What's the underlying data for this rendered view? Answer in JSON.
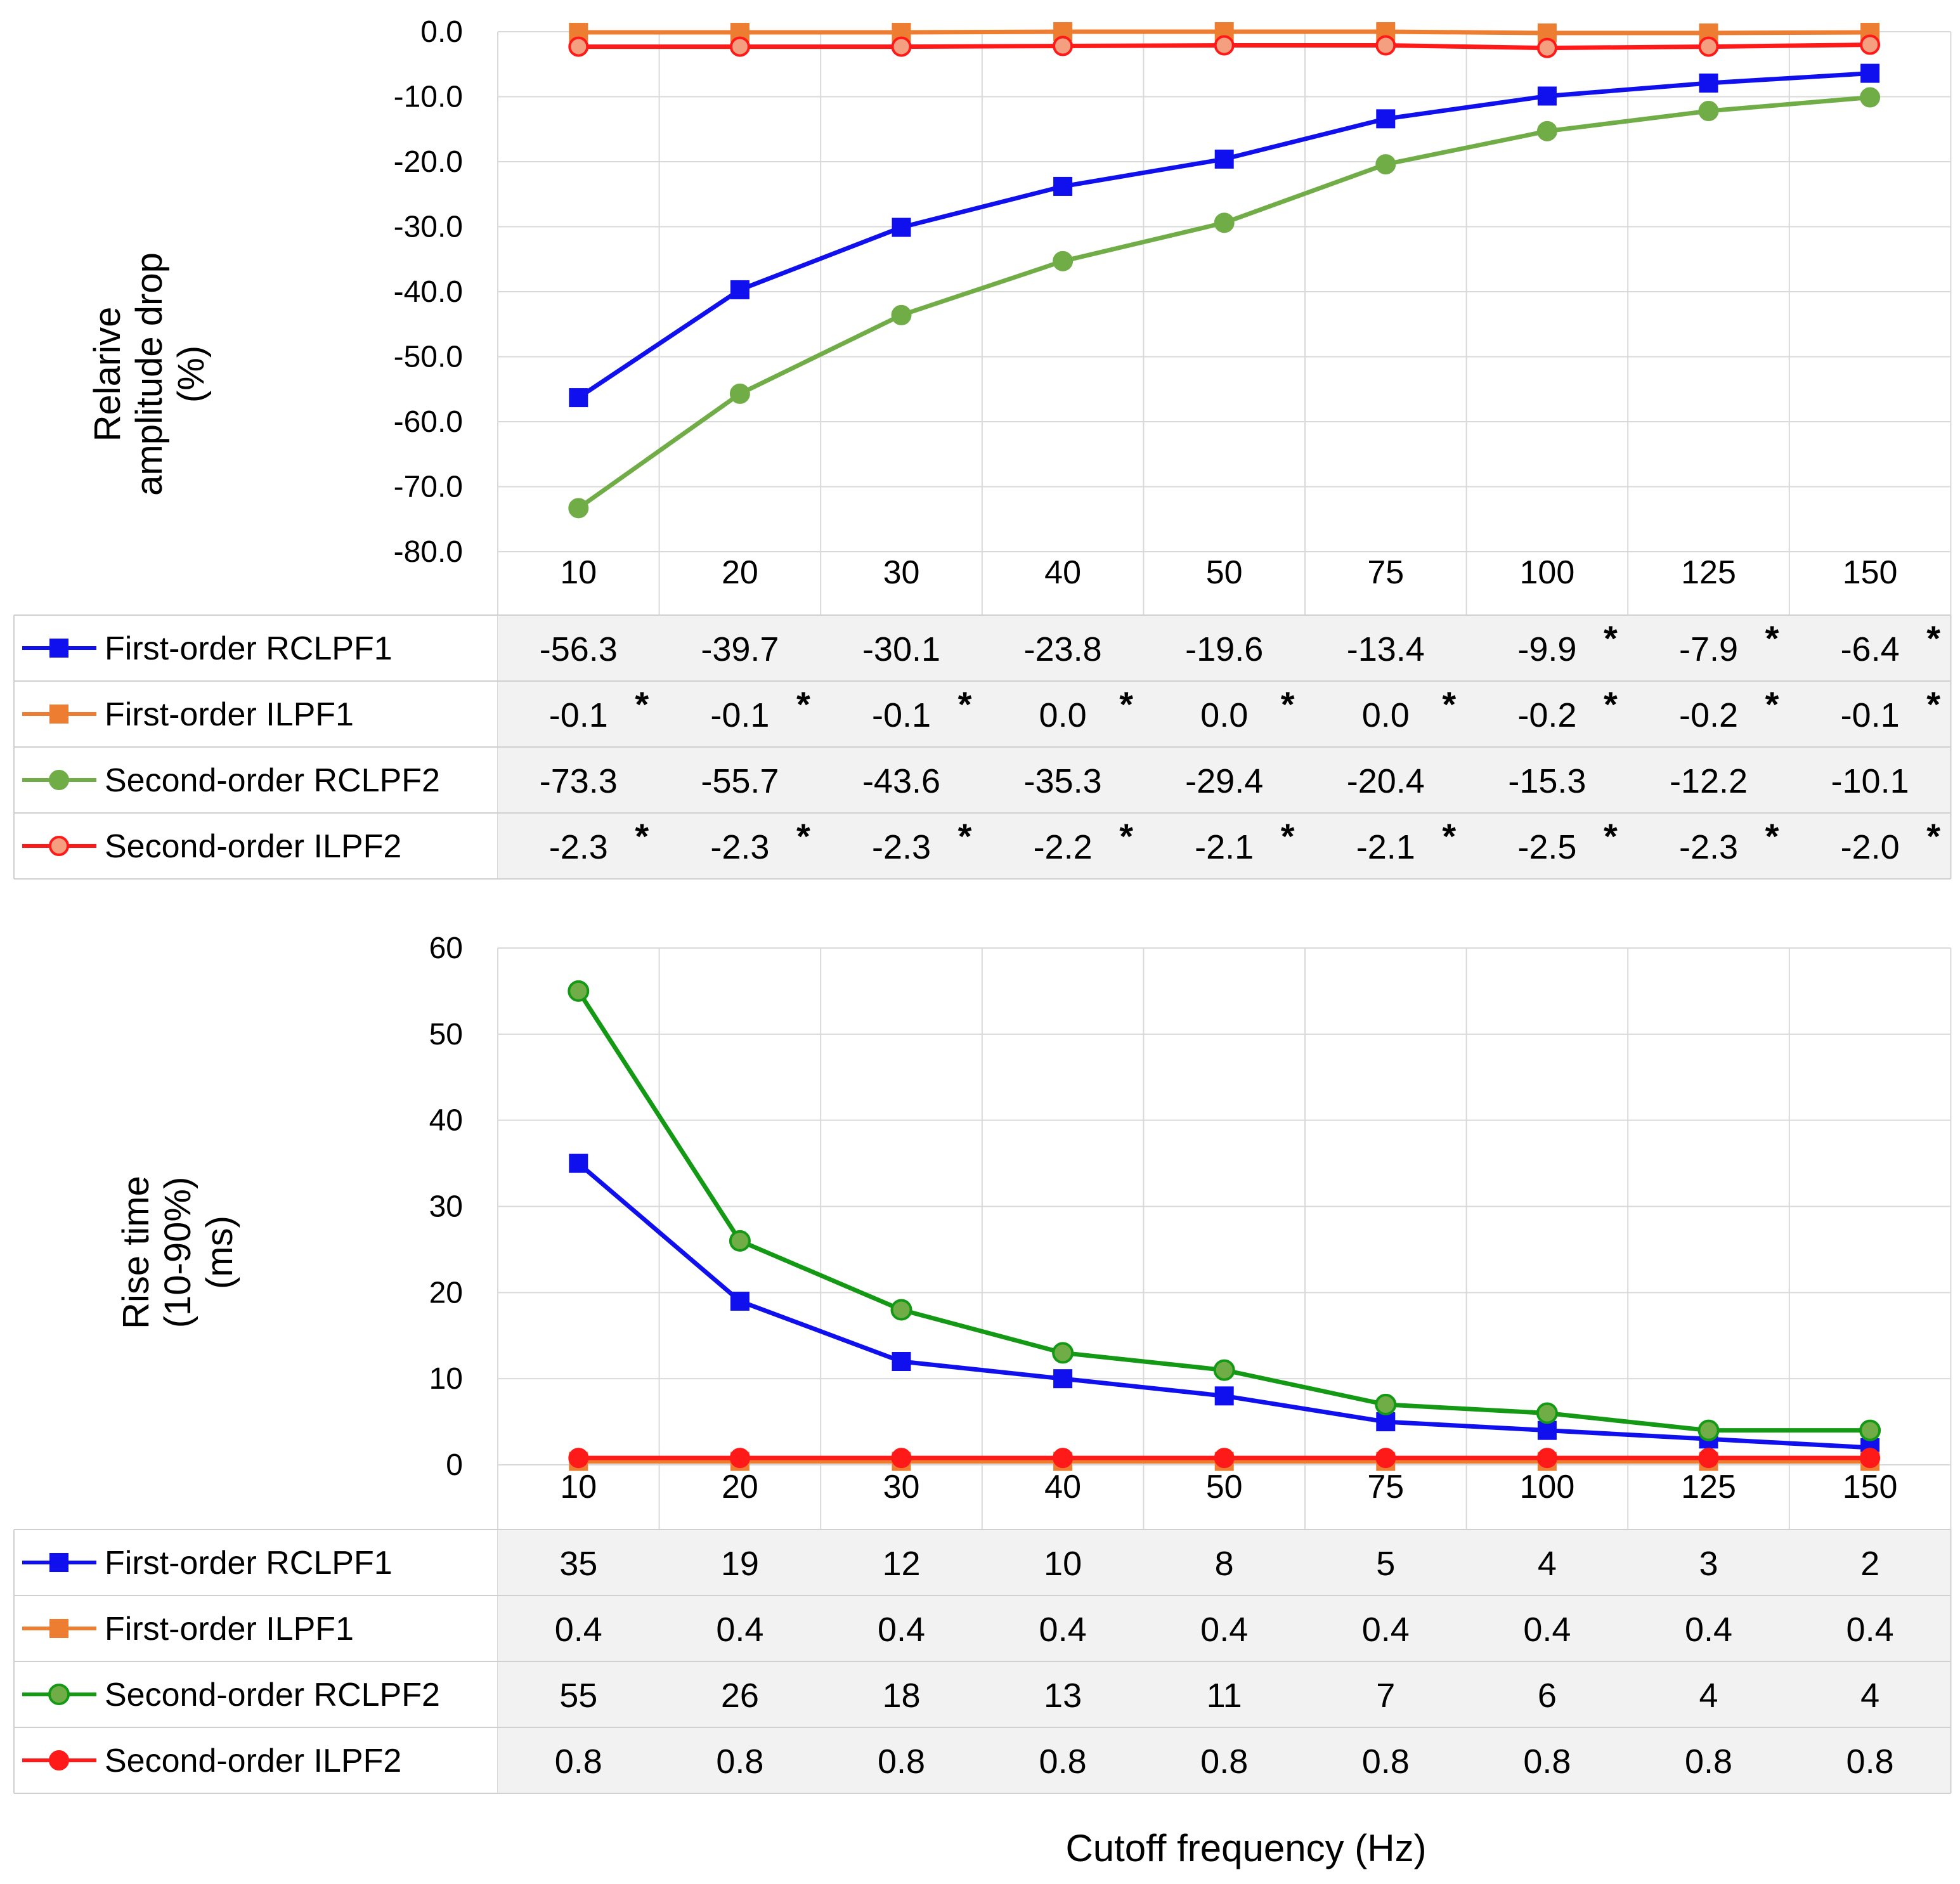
{
  "x_axis_label": "Cutoff frequency (Hz)",
  "chart_data": [
    {
      "type": "line",
      "ylabel_lines": [
        "Relarive",
        "amplitude drop",
        "(%)"
      ],
      "ylim": [
        -80,
        0
      ],
      "yticks": [
        0,
        -10,
        -20,
        -30,
        -40,
        -50,
        -60,
        -70,
        -80
      ],
      "ytick_labels": [
        "0.0",
        "-10.0",
        "-20.0",
        "-30.0",
        "-40.0",
        "-50.0",
        "-60.0",
        "-70.0",
        "-80.0"
      ],
      "categories": [
        "10",
        "20",
        "30",
        "40",
        "50",
        "75",
        "100",
        "125",
        "150"
      ],
      "series": [
        {
          "name": "First-order RCLPF1",
          "color": "#1010ee",
          "marker": "square",
          "values": [
            -56.3,
            -39.7,
            -30.1,
            -23.8,
            -19.6,
            -13.4,
            -9.9,
            -7.9,
            -6.4
          ],
          "labels": [
            "-56.3",
            "-39.7",
            "-30.1",
            "-23.8",
            "-19.6",
            "-13.4",
            "-9.9",
            "-7.9",
            "-6.4"
          ],
          "stars": [
            false,
            false,
            false,
            false,
            false,
            false,
            true,
            true,
            true
          ]
        },
        {
          "name": "First-order ILPF1",
          "color": "#ed7d31",
          "marker": "square",
          "values": [
            -0.1,
            -0.1,
            -0.1,
            0.0,
            0.0,
            0.0,
            -0.2,
            -0.2,
            -0.1
          ],
          "labels": [
            "-0.1",
            "-0.1",
            "-0.1",
            "0.0",
            "0.0",
            "0.0",
            "-0.2",
            "-0.2",
            "-0.1"
          ],
          "stars": [
            true,
            true,
            true,
            true,
            true,
            true,
            true,
            true,
            true
          ]
        },
        {
          "name": "Second-order RCLPF2",
          "color": "#70ad47",
          "marker": "circle",
          "values": [
            -73.3,
            -55.7,
            -43.6,
            -35.3,
            -29.4,
            -20.4,
            -15.3,
            -12.2,
            -10.1
          ],
          "labels": [
            "-73.3",
            "-55.7",
            "-43.6",
            "-35.3",
            "-29.4",
            "-20.4",
            "-15.3",
            "-12.2",
            "-10.1"
          ],
          "stars": [
            false,
            false,
            false,
            false,
            false,
            false,
            false,
            false,
            false
          ]
        },
        {
          "name": "Second-order ILPF2",
          "color": "#ff1a1a",
          "marker": "circle-open",
          "values": [
            -2.3,
            -2.3,
            -2.3,
            -2.2,
            -2.1,
            -2.1,
            -2.5,
            -2.3,
            -2.0
          ],
          "labels": [
            "-2.3",
            "-2.3",
            "-2.3",
            "-2.2",
            "-2.1",
            "-2.1",
            "-2.5",
            "-2.3",
            "-2.0"
          ],
          "stars": [
            true,
            true,
            true,
            true,
            true,
            true,
            true,
            true,
            true
          ]
        }
      ]
    },
    {
      "type": "line",
      "ylabel_lines": [
        "Rise time",
        "(10-90%)",
        "(ms)"
      ],
      "ylim": [
        0,
        60
      ],
      "yticks": [
        60,
        50,
        40,
        30,
        20,
        10,
        0
      ],
      "ytick_labels": [
        "60",
        "50",
        "40",
        "30",
        "20",
        "10",
        "0"
      ],
      "categories": [
        "10",
        "20",
        "30",
        "40",
        "50",
        "75",
        "100",
        "125",
        "150"
      ],
      "series": [
        {
          "name": "First-order RCLPF1",
          "color": "#1010ee",
          "marker": "square",
          "values": [
            35,
            19,
            12,
            10,
            8,
            5,
            4,
            3,
            2
          ],
          "labels": [
            "35",
            "19",
            "12",
            "10",
            "8",
            "5",
            "4",
            "3",
            "2"
          ],
          "stars": [
            false,
            false,
            false,
            false,
            false,
            false,
            false,
            false,
            false
          ]
        },
        {
          "name": "First-order ILPF1",
          "color": "#ed7d31",
          "marker": "square",
          "values": [
            0.4,
            0.4,
            0.4,
            0.4,
            0.4,
            0.4,
            0.4,
            0.4,
            0.4
          ],
          "labels": [
            "0.4",
            "0.4",
            "0.4",
            "0.4",
            "0.4",
            "0.4",
            "0.4",
            "0.4",
            "0.4"
          ],
          "stars": [
            false,
            false,
            false,
            false,
            false,
            false,
            false,
            false,
            false
          ]
        },
        {
          "name": "Second-order RCLPF2",
          "color": "#139913",
          "marker": "circle-green",
          "values": [
            55,
            26,
            18,
            13,
            11,
            7,
            6,
            4,
            4
          ],
          "labels": [
            "55",
            "26",
            "18",
            "13",
            "11",
            "7",
            "6",
            "4",
            "4"
          ],
          "stars": [
            false,
            false,
            false,
            false,
            false,
            false,
            false,
            false,
            false
          ]
        },
        {
          "name": "Second-order ILPF2",
          "color": "#ff1a1a",
          "marker": "circle",
          "values": [
            0.8,
            0.8,
            0.8,
            0.8,
            0.8,
            0.8,
            0.8,
            0.8,
            0.8
          ],
          "labels": [
            "0.8",
            "0.8",
            "0.8",
            "0.8",
            "0.8",
            "0.8",
            "0.8",
            "0.8",
            "0.8"
          ],
          "stars": [
            false,
            false,
            false,
            false,
            false,
            false,
            false,
            false,
            false
          ]
        }
      ]
    }
  ]
}
